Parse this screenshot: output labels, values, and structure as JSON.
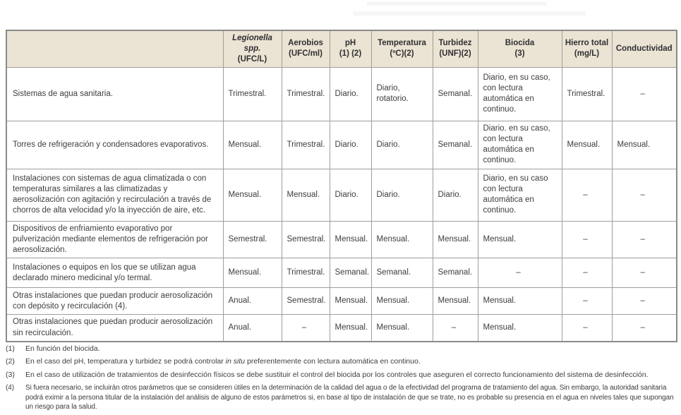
{
  "page": {
    "background": "#ffffff",
    "header_bg": "#ebe3d3",
    "border_color": "#9e9e9e",
    "text_color": "#3d3d3d"
  },
  "table": {
    "columns": [
      {
        "id": "row-label",
        "lines": []
      },
      {
        "id": "legionella",
        "lines": [
          {
            "text": "Legionella spp.",
            "italic": true
          },
          {
            "text": "(UFC/L)",
            "italic": false
          }
        ]
      },
      {
        "id": "aerobios",
        "lines": [
          {
            "text": "Aerobios",
            "italic": false
          },
          {
            "text": "(UFC/ml)",
            "italic": false
          }
        ]
      },
      {
        "id": "ph",
        "lines": [
          {
            "text": "pH",
            "italic": false
          },
          {
            "text": "(1) (2)",
            "italic": false
          }
        ]
      },
      {
        "id": "temperatura",
        "lines": [
          {
            "text": "Temperatura",
            "italic": false
          },
          {
            "text": "(ºC)(2)",
            "italic": false
          }
        ]
      },
      {
        "id": "turbidez",
        "lines": [
          {
            "text": "Turbidez",
            "italic": false
          },
          {
            "text": "(UNF)(2)",
            "italic": false
          }
        ]
      },
      {
        "id": "biocida",
        "lines": [
          {
            "text": "Biocida",
            "italic": false
          },
          {
            "text": "(3)",
            "italic": false
          }
        ]
      },
      {
        "id": "hierro-total",
        "lines": [
          {
            "text": "Hierro total",
            "italic": false
          },
          {
            "text": "(mg/L)",
            "italic": false
          }
        ]
      },
      {
        "id": "conductividad",
        "lines": [
          {
            "text": "Conductividad",
            "italic": false
          }
        ]
      }
    ],
    "rows": [
      {
        "label": "Sistemas de agua sanitaria.",
        "cells": [
          "Trimestral.",
          "Trimestral.",
          "Diario.",
          "Diario, rotatorio.",
          "Semanal.",
          "Diario, en su caso, con lectura automática en continuo.",
          "Trimestral.",
          "–"
        ]
      },
      {
        "label": "Torres de refrigeración y condensadores evaporativos.",
        "cells": [
          "Mensual.",
          "Trimestral.",
          "Diario.",
          "Diario.",
          "Semanal.",
          "Diario. en su caso, con lectura automática en continuo.",
          "Mensual.",
          "Mensual."
        ]
      },
      {
        "label": "Instalaciones con sistemas de agua climatizada o con temperaturas similares a las climatizadas y aerosolización con agitación y recirculación a través de chorros de alta velocidad y/o la inyección de aire, etc.",
        "cells": [
          "Mensual.",
          "Mensual.",
          "Diario.",
          "Diario.",
          "Diario.",
          "Diario, en su caso con lectura automática en continuo.",
          "–",
          "–"
        ]
      },
      {
        "label": "Dispositivos de enfriamiento evaporativo por pulverización mediante elementos de refrigeración por aerosolización.",
        "cells": [
          "Semestral.",
          "Semestral.",
          "Mensual.",
          "Mensual.",
          "Mensual.",
          "Mensual.",
          "–",
          "–"
        ]
      },
      {
        "label": "Instalaciones o equipos en los que se utilizan agua declarado minero medicinal y/o termal.",
        "cells": [
          "Mensual.",
          "Trimestral.",
          "Semanal.",
          "Semanal.",
          "Semanal.",
          "–",
          "–",
          "–"
        ]
      },
      {
        "label": "Otras instalaciones que puedan producir aerosolización con depósito y recirculación (4).",
        "cells": [
          "Anual.",
          "Semestral.",
          "Mensual.",
          "Mensual.",
          "Mensual.",
          "Mensual.",
          "–",
          "–"
        ]
      },
      {
        "label": "Otras instalaciones que puedan producir aerosolización sin recirculación.",
        "cells": [
          "Anual.",
          "–",
          "Mensual.",
          "Mensual.",
          "–",
          "Mensual.",
          "–",
          "–"
        ]
      }
    ]
  },
  "footnotes": [
    {
      "num": "(1)",
      "before": "En función del biocida.",
      "italic": "",
      "after": "",
      "small": false
    },
    {
      "num": "(2)",
      "before": "En el caso del pH, temperatura y turbidez se podrá controlar ",
      "italic": "in situ",
      "after": " preferentemente con lectura automática en continuo.",
      "small": false
    },
    {
      "num": "(3)",
      "before": "En el caso de utilización de tratamientos de desinfección físicos se debe sustituir el control del biocida por los controles que aseguren el correcto funcionamiento del sistema de desinfección.",
      "italic": "",
      "after": "",
      "small": false
    },
    {
      "num": "(4)",
      "before": "Si fuera necesario, se incluirán otros parámetros que se consideren útiles en la determinación de la calidad del agua o de la efectividad del programa de tratamiento del agua. Sin embargo, la autoridad sanitaria podrá eximir a la persona titular de la instalación del análisis de alguno de estos parámetros si, en base al tipo de instalación de que se trate, no es probable su presencia en el agua en niveles tales que supongan un riesgo para la salud.",
      "italic": "",
      "after": "",
      "small": true
    }
  ]
}
